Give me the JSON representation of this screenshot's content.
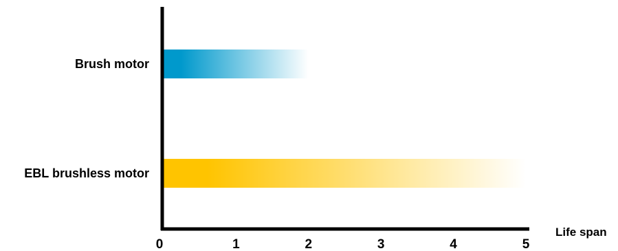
{
  "chart_data": {
    "type": "bar",
    "orientation": "horizontal",
    "title": "",
    "xlabel": "Life span",
    "ylabel": "",
    "xlim": [
      0,
      5
    ],
    "xticks": [
      0,
      1,
      2,
      3,
      4,
      5
    ],
    "grid": false,
    "legend": "none",
    "categories": [
      "Brush motor",
      "EBL brushless motor"
    ],
    "values": [
      2,
      5
    ],
    "colors": [
      "#0099cc",
      "#ffc400"
    ],
    "fill_style": "gradient fading to white"
  }
}
